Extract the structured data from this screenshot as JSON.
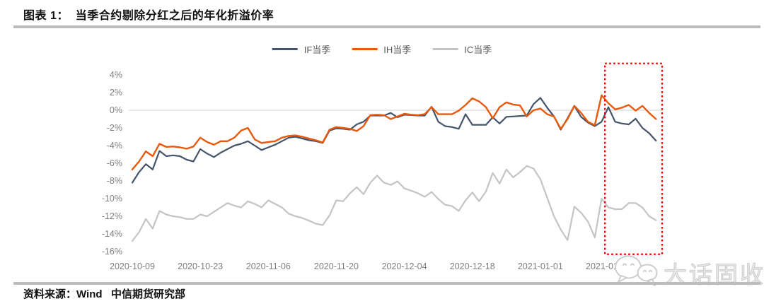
{
  "title": "图表 1：  当季合约剔除分红之后的年化折溢价率",
  "source": "资料来源：Wind   中信期货研究部",
  "watermark": {
    "text": "大话固收",
    "icon": "wechat-logo-icon"
  },
  "colors": {
    "rule": "#BDBDBD",
    "gridline": "#D9D9D9",
    "axis_text": "#7F7F7F",
    "legend_text": "#595959",
    "highlight_box": "#FF0000"
  },
  "chart_data": {
    "type": "line",
    "title": "当季合约剔除分红之后的年化折溢价率",
    "xlabel": "",
    "ylabel": "",
    "ylim": [
      -16,
      4
    ],
    "y_ticks": [
      4,
      2,
      0,
      -2,
      -4,
      -6,
      -8,
      -10,
      -12,
      -14,
      -16
    ],
    "y_tick_suffix": "%",
    "grid": "zero-line-only",
    "legend_position": "top-center",
    "x_tick_labels": [
      "2020-10-09",
      "2020-10-23",
      "2020-11-06",
      "2020-11-20",
      "2020-12-04",
      "2020-12-18",
      "2021-01-01",
      "2021-01-15"
    ],
    "x_tick_day_index": [
      0,
      10,
      20,
      30,
      40,
      50,
      60,
      70
    ],
    "series": [
      {
        "name": "IF当季",
        "color": "#44546A",
        "values": [
          -8.2,
          -7.0,
          -6.1,
          -6.7,
          -4.6,
          -5.2,
          -5.1,
          -5.2,
          -5.6,
          -5.8,
          -4.4,
          -4.9,
          -5.3,
          -4.8,
          -4.4,
          -4.0,
          -3.8,
          -3.5,
          -4.0,
          -4.5,
          -4.2,
          -3.9,
          -3.5,
          -3.1,
          -3.0,
          -3.2,
          -3.4,
          -3.5,
          -3.7,
          -2.3,
          -2.05,
          -2.1,
          -2.2,
          -1.6,
          -1.3,
          -0.6,
          -0.6,
          -0.6,
          -0.3,
          -0.8,
          -0.5,
          -0.55,
          -0.6,
          -0.6,
          0.4,
          -1.3,
          -1.8,
          -1.9,
          -2.1,
          -0.45,
          -1.65,
          -1.65,
          -1.65,
          -0.8,
          -1.5,
          -0.75,
          -0.7,
          -0.65,
          -0.6,
          0.7,
          1.4,
          0.3,
          -0.7,
          -2.2,
          -0.9,
          0.5,
          -0.75,
          -1.4,
          -1.8,
          -1.3,
          0.35,
          -1.3,
          -1.5,
          -1.6,
          -0.95,
          -2.0,
          -2.6,
          -3.45
        ]
      },
      {
        "name": "IH当季",
        "color": "#E8590C",
        "values": [
          -6.7,
          -5.8,
          -4.65,
          -5.2,
          -3.8,
          -4.15,
          -4.1,
          -4.2,
          -4.35,
          -4.1,
          -3.1,
          -3.6,
          -3.9,
          -3.5,
          -3.5,
          -3.1,
          -2.3,
          -2.0,
          -3.3,
          -3.7,
          -3.6,
          -3.5,
          -3.1,
          -2.9,
          -2.85,
          -3.0,
          -3.2,
          -3.4,
          -3.65,
          -2.2,
          -1.9,
          -2.0,
          -2.1,
          -2.35,
          -1.8,
          -0.55,
          -0.5,
          -0.55,
          -1.0,
          -0.7,
          -0.4,
          -0.5,
          -0.55,
          -0.45,
          0.35,
          -0.45,
          -0.45,
          -0.45,
          -0.05,
          0.6,
          1.35,
          1.0,
          0.35,
          -0.9,
          0.35,
          0.9,
          0.65,
          0.55,
          -0.7,
          0.0,
          0.2,
          -0.45,
          -0.7,
          -2.1,
          -1.0,
          0.5,
          -0.3,
          -1.3,
          -1.7,
          1.7,
          0.8,
          0.1,
          0.3,
          0.6,
          -0.05,
          0.5,
          -0.3,
          -1.0
        ]
      },
      {
        "name": "IC当季",
        "color": "#C4C4C4",
        "values": [
          -14.8,
          -13.8,
          -12.3,
          -13.4,
          -11.4,
          -11.8,
          -12.0,
          -12.1,
          -12.3,
          -12.3,
          -11.8,
          -12.0,
          -11.5,
          -11.0,
          -10.5,
          -10.8,
          -11.0,
          -10.3,
          -10.6,
          -11.0,
          -10.2,
          -10.6,
          -11.0,
          -11.7,
          -12.0,
          -12.2,
          -12.5,
          -12.85,
          -13.0,
          -11.9,
          -10.2,
          -10.3,
          -9.4,
          -8.7,
          -9.5,
          -8.2,
          -7.4,
          -8.2,
          -8.45,
          -8.05,
          -8.85,
          -9.1,
          -9.4,
          -9.8,
          -9.25,
          -10.05,
          -10.7,
          -10.85,
          -11.4,
          -10.2,
          -9.3,
          -10.3,
          -9.2,
          -7.1,
          -8.3,
          -6.7,
          -7.6,
          -7.0,
          -6.3,
          -6.6,
          -7.8,
          -9.9,
          -12.0,
          -13.5,
          -14.7,
          -10.9,
          -11.6,
          -12.6,
          -14.4,
          -10.0,
          -11.0,
          -11.2,
          -11.2,
          -10.5,
          -10.5,
          -11.0,
          -12.0,
          -12.45
        ]
      }
    ],
    "highlight_box": {
      "style": "dotted",
      "color": "#FF0000",
      "day_start": 69.5,
      "day_end": 77.9,
      "y_top": 5.3,
      "y_bottom": -16.3
    }
  }
}
